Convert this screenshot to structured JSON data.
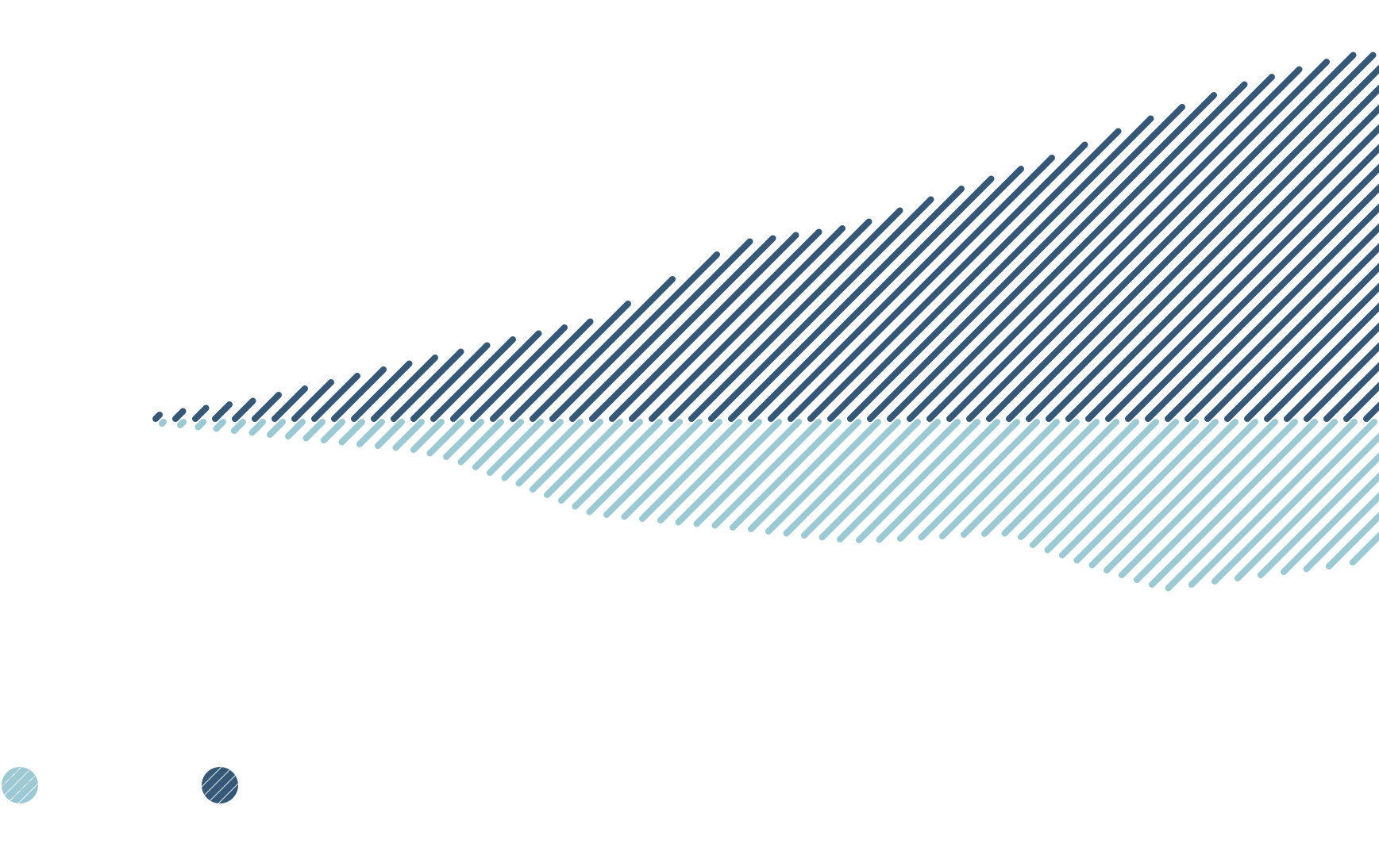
{
  "chart_data": {
    "type": "area",
    "title": "",
    "xlabel": "",
    "ylabel": "",
    "xlim": [
      0,
      100
    ],
    "ylim": [
      -50,
      100
    ],
    "grid": false,
    "fill_style": "diagonal-hatch",
    "legend_placement": "bottom-left",
    "series": [
      {
        "color": "#9ccad4",
        "x": [
          0.5,
          7.8,
          15.1,
          22.4,
          25,
          29.8,
          36.7,
          39.7,
          48.4,
          57.2,
          58.9,
          67.4,
          70.7,
          71.6,
          75.1,
          82.5,
          89.9,
          97.2,
          100
        ],
        "values": [
          -0.7,
          -3.1,
          -5.8,
          -8.4,
          -10.3,
          -16.3,
          -25.7,
          -26.9,
          -29.7,
          -33.1,
          -33.1,
          -31.4,
          -31.2,
          -33.8,
          -38.1,
          -46.3,
          -42.7,
          -39.6,
          -36.5
        ]
      },
      {
        "color": "#365878",
        "x": [
          0.7,
          10.2,
          20.9,
          31.5,
          37.8,
          48.8,
          58.2,
          65.7,
          72.9,
          81.2,
          88.8,
          97.9,
          100
        ],
        "values": [
          1,
          5.8,
          14.6,
          23,
          28,
          48.7,
          53.2,
          62.4,
          70.5,
          81.8,
          91.4,
          100,
          100
        ]
      }
    ]
  }
}
